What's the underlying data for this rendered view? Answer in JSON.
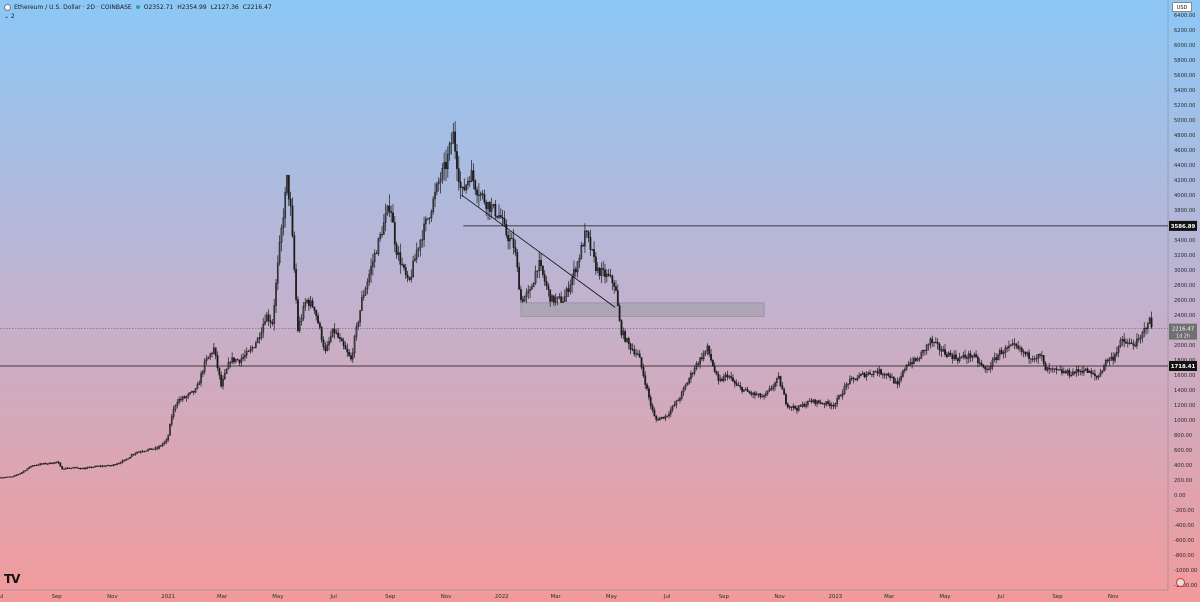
{
  "header": {
    "symbol": "Ethereum / U.S. Dollar · 2D · COINBASE",
    "open": "O2352.71",
    "high": "H2354.99",
    "low": "L2127.36",
    "close": "C2216.47",
    "indicator_toggle": "⌄ 2"
  },
  "currency": "USD",
  "logo": "TV",
  "colors": {
    "bg_top": "#8cc8f6",
    "bg_mid": "#c2b2cf",
    "bg_bottom": "#f29a9a",
    "candle": "#1a1a1a",
    "zone": "#9d9aa3",
    "badge": "#111111",
    "current_badge": "#707070"
  },
  "chart_data": {
    "type": "candlestick",
    "title": "",
    "xlabel": "",
    "ylabel": "",
    "ylim": [
      -1270,
      6600
    ],
    "xlim": [
      "2020-07-01",
      "2023-12-31"
    ],
    "y_ticks": [
      "-1200.00",
      "-1000.00",
      "-800.00",
      "-600.00",
      "-400.00",
      "-200.00",
      "0.00",
      "200.00",
      "400.00",
      "600.00",
      "800.00",
      "1000.00",
      "1200.00",
      "1400.00",
      "1600.00",
      "1800.00",
      "2000.00",
      "2200.00",
      "2400.00",
      "2600.00",
      "2800.00",
      "3000.00",
      "3200.00",
      "3400.00",
      "3600.00",
      "3800.00",
      "4000.00",
      "4200.00",
      "4400.00",
      "4600.00",
      "4800.00",
      "5000.00",
      "5200.00",
      "5400.00",
      "5600.00",
      "5800.00",
      "6000.00",
      "6200.00",
      "6400.00"
    ],
    "x_ticks": [
      {
        "label": "Jul",
        "date": "2020-07-01"
      },
      {
        "label": "Sep",
        "date": "2020-09-01"
      },
      {
        "label": "Nov",
        "date": "2020-11-01"
      },
      {
        "label": "2021",
        "date": "2021-01-01"
      },
      {
        "label": "Mar",
        "date": "2021-03-01"
      },
      {
        "label": "May",
        "date": "2021-05-01"
      },
      {
        "label": "Jul",
        "date": "2021-07-01"
      },
      {
        "label": "Sep",
        "date": "2021-09-01"
      },
      {
        "label": "Nov",
        "date": "2021-11-01"
      },
      {
        "label": "2022",
        "date": "2022-01-01"
      },
      {
        "label": "Mar",
        "date": "2022-03-01"
      },
      {
        "label": "May",
        "date": "2022-05-01"
      },
      {
        "label": "Jul",
        "date": "2022-07-01"
      },
      {
        "label": "Sep",
        "date": "2022-09-01"
      },
      {
        "label": "Nov",
        "date": "2022-11-01"
      },
      {
        "label": "2023",
        "date": "2023-01-01"
      },
      {
        "label": "Mar",
        "date": "2023-03-01"
      },
      {
        "label": "May",
        "date": "2023-05-01"
      },
      {
        "label": "Jul",
        "date": "2023-07-01"
      },
      {
        "label": "Sep",
        "date": "2023-09-01"
      },
      {
        "label": "Nov",
        "date": "2023-11-01"
      }
    ],
    "series": [
      {
        "points": [
          [
            "2020-07-01",
            230
          ],
          [
            "2020-07-15",
            240
          ],
          [
            "2020-07-25",
            300
          ],
          [
            "2020-08-05",
            390
          ],
          [
            "2020-08-15",
            410
          ],
          [
            "2020-08-25",
            420
          ],
          [
            "2020-09-02",
            440
          ],
          [
            "2020-09-06",
            350
          ],
          [
            "2020-09-20",
            360
          ],
          [
            "2020-10-01",
            350
          ],
          [
            "2020-10-15",
            380
          ],
          [
            "2020-10-31",
            390
          ],
          [
            "2020-11-15",
            460
          ],
          [
            "2020-11-25",
            560
          ],
          [
            "2020-12-05",
            590
          ],
          [
            "2020-12-20",
            620
          ],
          [
            "2020-12-31",
            730
          ],
          [
            "2021-01-05",
            1050
          ],
          [
            "2021-01-10",
            1250
          ],
          [
            "2021-01-20",
            1300
          ],
          [
            "2021-02-01",
            1400
          ],
          [
            "2021-02-10",
            1750
          ],
          [
            "2021-02-20",
            1950
          ],
          [
            "2021-02-28",
            1450
          ],
          [
            "2021-03-10",
            1800
          ],
          [
            "2021-03-20",
            1800
          ],
          [
            "2021-03-31",
            1900
          ],
          [
            "2021-04-10",
            2100
          ],
          [
            "2021-04-18",
            2400
          ],
          [
            "2021-04-25",
            2300
          ],
          [
            "2021-05-03",
            3300
          ],
          [
            "2021-05-11",
            4200
          ],
          [
            "2021-05-15",
            3800
          ],
          [
            "2021-05-23",
            2200
          ],
          [
            "2021-06-01",
            2600
          ],
          [
            "2021-06-10",
            2500
          ],
          [
            "2021-06-22",
            1900
          ],
          [
            "2021-07-01",
            2200
          ],
          [
            "2021-07-20",
            1800
          ],
          [
            "2021-08-01",
            2600
          ],
          [
            "2021-08-15",
            3200
          ],
          [
            "2021-09-01",
            3900
          ],
          [
            "2021-09-07",
            3300
          ],
          [
            "2021-09-21",
            2800
          ],
          [
            "2021-10-01",
            3300
          ],
          [
            "2021-10-15",
            3800
          ],
          [
            "2021-10-25",
            4200
          ],
          [
            "2021-11-01",
            4400
          ],
          [
            "2021-11-09",
            4800
          ],
          [
            "2021-11-18",
            4000
          ],
          [
            "2021-11-28",
            4300
          ],
          [
            "2021-12-04",
            4100
          ],
          [
            "2021-12-15",
            3900
          ],
          [
            "2021-12-31",
            3700
          ],
          [
            "2022-01-05",
            3500
          ],
          [
            "2022-01-15",
            3300
          ],
          [
            "2022-01-22",
            2600
          ],
          [
            "2022-02-01",
            2700
          ],
          [
            "2022-02-10",
            3100
          ],
          [
            "2022-02-24",
            2600
          ],
          [
            "2022-03-10",
            2600
          ],
          [
            "2022-03-25",
            3100
          ],
          [
            "2022-04-03",
            3500
          ],
          [
            "2022-04-15",
            3000
          ],
          [
            "2022-04-28",
            2900
          ],
          [
            "2022-05-05",
            2800
          ],
          [
            "2022-05-11",
            2200
          ],
          [
            "2022-05-20",
            2000
          ],
          [
            "2022-05-31",
            1850
          ],
          [
            "2022-06-13",
            1200
          ],
          [
            "2022-06-18",
            1000
          ],
          [
            "2022-06-30",
            1050
          ],
          [
            "2022-07-15",
            1300
          ],
          [
            "2022-07-31",
            1700
          ],
          [
            "2022-08-14",
            1950
          ],
          [
            "2022-08-26",
            1500
          ],
          [
            "2022-09-05",
            1600
          ],
          [
            "2022-09-15",
            1450
          ],
          [
            "2022-09-30",
            1350
          ],
          [
            "2022-10-15",
            1300
          ],
          [
            "2022-10-31",
            1550
          ],
          [
            "2022-11-09",
            1200
          ],
          [
            "2022-11-20",
            1150
          ],
          [
            "2022-12-05",
            1250
          ],
          [
            "2022-12-31",
            1200
          ],
          [
            "2023-01-15",
            1500
          ],
          [
            "2023-01-31",
            1600
          ],
          [
            "2023-02-15",
            1650
          ],
          [
            "2023-03-01",
            1600
          ],
          [
            "2023-03-10",
            1450
          ],
          [
            "2023-03-20",
            1750
          ],
          [
            "2023-04-01",
            1800
          ],
          [
            "2023-04-15",
            2050
          ],
          [
            "2023-04-30",
            1900
          ],
          [
            "2023-05-15",
            1820
          ],
          [
            "2023-05-31",
            1860
          ],
          [
            "2023-06-15",
            1650
          ],
          [
            "2023-06-30",
            1900
          ],
          [
            "2023-07-15",
            1980
          ],
          [
            "2023-07-31",
            1850
          ],
          [
            "2023-08-15",
            1840
          ],
          [
            "2023-08-18",
            1670
          ],
          [
            "2023-08-31",
            1650
          ],
          [
            "2023-09-15",
            1620
          ],
          [
            "2023-09-30",
            1670
          ],
          [
            "2023-10-15",
            1560
          ],
          [
            "2023-10-25",
            1800
          ],
          [
            "2023-11-01",
            1830
          ],
          [
            "2023-11-10",
            2050
          ],
          [
            "2023-11-20",
            2000
          ],
          [
            "2023-11-30",
            2050
          ],
          [
            "2023-12-05",
            2200
          ],
          [
            "2023-12-10",
            2350
          ],
          [
            "2023-12-14",
            2216
          ]
        ]
      }
    ],
    "annotations": {
      "hlines": [
        {
          "value": 3586.89,
          "label": "3586.89",
          "from": "2021-11-20"
        },
        {
          "value": 1718.41,
          "label": "1718.41",
          "from": "2020-07-01"
        }
      ],
      "trendline": {
        "from": [
          "2021-11-18",
          4000
        ],
        "to": [
          "2022-05-05",
          2500
        ]
      },
      "zone": {
        "from": "2022-01-22",
        "to": "2022-10-15",
        "bottom": 2380,
        "top": 2560
      },
      "current_price": {
        "value": 2216.47,
        "label": "2216.47",
        "countdown": "1d 2h"
      }
    }
  }
}
